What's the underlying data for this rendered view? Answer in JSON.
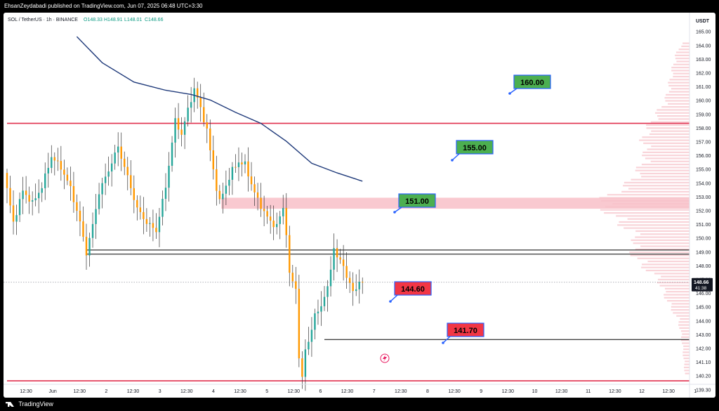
{
  "header": {
    "publisher_line": "EhsanZeydabadi published on TradingView.com, Jun 07, 2025 06:48 UTC+3:30"
  },
  "footer": {
    "brand": "TradingView"
  },
  "colors": {
    "up": "#26a69a",
    "down": "#ff9800",
    "sma": "#1f3a7a",
    "support": "#e0314f",
    "zone": "#f8c0c8",
    "green_box": "#4caf50",
    "red_box": "#f23645",
    "price_tag": "#131722",
    "volume_profile": "#f7c9d0"
  },
  "chart_data": {
    "type": "line",
    "instrument": "SOL / TetherUS · 1h · BINANCE",
    "ohlc": {
      "o": "O148.33",
      "h": "H148.91",
      "l": "L148.01",
      "c": "C148.66"
    },
    "price_scale_unit": "USDT",
    "current_price": "148.66",
    "countdown": "41:38",
    "ylim": [
      139.0,
      166.5
    ],
    "y_ticks": [
      "165.00",
      "164.00",
      "163.00",
      "162.00",
      "161.00",
      "160.00",
      "159.00",
      "158.00",
      "157.00",
      "156.00",
      "155.00",
      "154.00",
      "153.00",
      "152.00",
      "151.00",
      "150.00",
      "149.00",
      "148.00",
      "147.00",
      "146.00",
      "145.00",
      "144.00",
      "143.00",
      "142.00",
      "141.10",
      "140.20",
      "139.30"
    ],
    "x_ticks": [
      "12:30",
      "Jun",
      "12:30",
      "2",
      "12:30",
      "3",
      "12:30",
      "4",
      "12:30",
      "5",
      "12:30",
      "6",
      "12:30",
      "7",
      "12:30",
      "8",
      "12:30",
      "9",
      "12:30",
      "10",
      "12:30",
      "11",
      "12:30",
      "12",
      "12:30",
      "1"
    ],
    "price_path": [
      {
        "t": 0,
        "p": 156.6
      },
      {
        "t": 3,
        "p": 153.0
      },
      {
        "t": 6,
        "p": 155.3
      },
      {
        "t": 9,
        "p": 154.4
      },
      {
        "t": 12,
        "p": 155.6
      },
      {
        "t": 15,
        "p": 157.8
      },
      {
        "t": 18,
        "p": 157.0
      },
      {
        "t": 21,
        "p": 155.5
      },
      {
        "t": 24,
        "p": 153.0
      },
      {
        "t": 26,
        "p": 150.8
      },
      {
        "t": 28,
        "p": 152.8
      },
      {
        "t": 30,
        "p": 155.2
      },
      {
        "t": 33,
        "p": 156.8
      },
      {
        "t": 36,
        "p": 158.5
      },
      {
        "t": 39,
        "p": 156.3
      },
      {
        "t": 42,
        "p": 154.0
      },
      {
        "t": 45,
        "p": 153.0
      },
      {
        "t": 48,
        "p": 152.4
      },
      {
        "t": 51,
        "p": 155.6
      },
      {
        "t": 54,
        "p": 160.4
      },
      {
        "t": 56,
        "p": 159.4
      },
      {
        "t": 58,
        "p": 161.2
      },
      {
        "t": 60,
        "p": 162.7
      },
      {
        "t": 62,
        "p": 161.3
      },
      {
        "t": 64,
        "p": 159.7
      },
      {
        "t": 65,
        "p": 158.2
      },
      {
        "t": 67,
        "p": 155.5
      },
      {
        "t": 68,
        "p": 154.5
      },
      {
        "t": 70,
        "p": 155.7
      },
      {
        "t": 72,
        "p": 156.8
      },
      {
        "t": 74,
        "p": 157.4
      },
      {
        "t": 76,
        "p": 157.2
      },
      {
        "t": 78,
        "p": 155.8
      },
      {
        "t": 80,
        "p": 154.6
      },
      {
        "t": 82,
        "p": 153.8
      },
      {
        "t": 84,
        "p": 153.0
      },
      {
        "t": 86,
        "p": 152.8
      },
      {
        "t": 88,
        "p": 154.0
      },
      {
        "t": 89,
        "p": 152.3
      },
      {
        "t": 90,
        "p": 149.2
      },
      {
        "t": 92,
        "p": 148.2
      },
      {
        "t": 93,
        "p": 143.3
      },
      {
        "t": 94,
        "p": 141.6
      },
      {
        "t": 95,
        "p": 143.8
      },
      {
        "t": 96,
        "p": 144.4
      },
      {
        "t": 98,
        "p": 146.2
      },
      {
        "t": 100,
        "p": 147.0
      },
      {
        "t": 102,
        "p": 148.2
      },
      {
        "t": 104,
        "p": 151.2
      },
      {
        "t": 105,
        "p": 150.4
      },
      {
        "t": 107,
        "p": 150.0
      },
      {
        "t": 108,
        "p": 149.0
      },
      {
        "t": 110,
        "p": 148.0
      },
      {
        "t": 111,
        "p": 148.3
      },
      {
        "t": 112,
        "p": 148.66
      }
    ],
    "sma_path": [
      {
        "t": 22,
        "p": 166.5
      },
      {
        "t": 30,
        "p": 164.6
      },
      {
        "t": 40,
        "p": 163.2
      },
      {
        "t": 50,
        "p": 162.6
      },
      {
        "t": 58,
        "p": 162.3
      },
      {
        "t": 64,
        "p": 161.9
      },
      {
        "t": 72,
        "p": 161.0
      },
      {
        "t": 80,
        "p": 160.2
      },
      {
        "t": 88,
        "p": 158.9
      },
      {
        "t": 96,
        "p": 157.3
      },
      {
        "t": 104,
        "p": 156.6
      },
      {
        "t": 112,
        "p": 156.0
      }
    ],
    "levels": [
      {
        "price": 160.2,
        "color": "#e0314f",
        "width": 1.6
      },
      {
        "price": 151.0,
        "color": "#000000",
        "width": 1.0
      },
      {
        "price": 150.7,
        "color": "#000000",
        "width": 1.0
      },
      {
        "price": 144.5,
        "color": "#000000",
        "width": 1.0
      },
      {
        "price": 141.5,
        "color": "#e0314f",
        "width": 1.6
      }
    ],
    "zone": {
      "top": 154.8,
      "bottom": 154.0
    },
    "annotations": [
      {
        "text": "160.00",
        "kind": "green"
      },
      {
        "text": "155.00",
        "kind": "green"
      },
      {
        "text": "151.00",
        "kind": "green"
      },
      {
        "text": "144.60",
        "kind": "red"
      },
      {
        "text": "141.70",
        "kind": "red"
      }
    ]
  }
}
